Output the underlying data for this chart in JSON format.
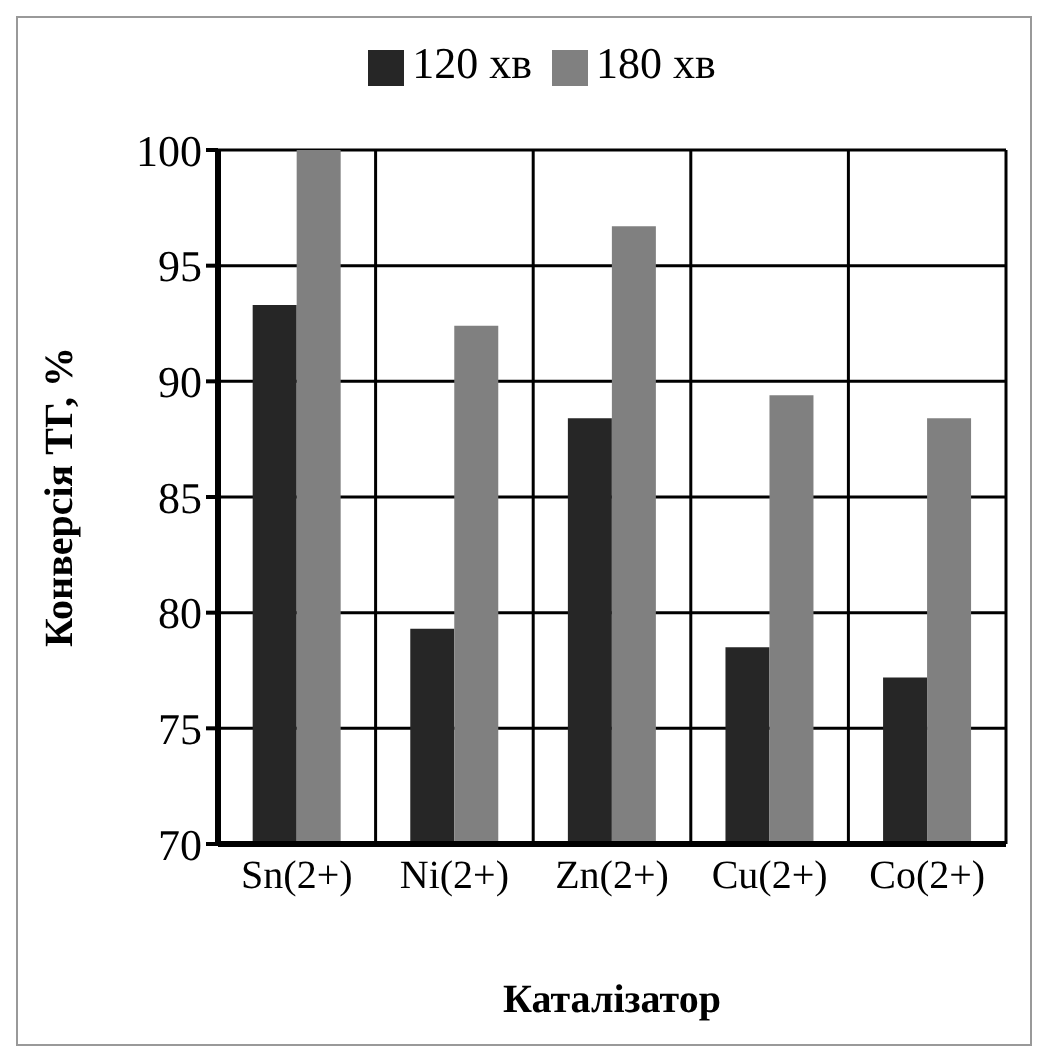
{
  "chart_data": {
    "type": "bar",
    "xlabel": "Каталізатор",
    "ylabel": "Конверсія ТГ, %",
    "categories": [
      "Sn(2+)",
      "Ni(2+)",
      "Zn(2+)",
      "Cu(2+)",
      "Co(2+)"
    ],
    "series": [
      {
        "name": "120 хв",
        "color": "#262626",
        "values": [
          93.3,
          79.3,
          88.4,
          78.5,
          77.2
        ]
      },
      {
        "name": "180 хв",
        "color": "#808080",
        "values": [
          100,
          92.4,
          96.7,
          89.4,
          88.4
        ]
      }
    ],
    "ylim": [
      70,
      100
    ],
    "yticks": [
      70,
      75,
      80,
      85,
      90,
      95,
      100
    ],
    "grid": true,
    "legend": "top"
  }
}
